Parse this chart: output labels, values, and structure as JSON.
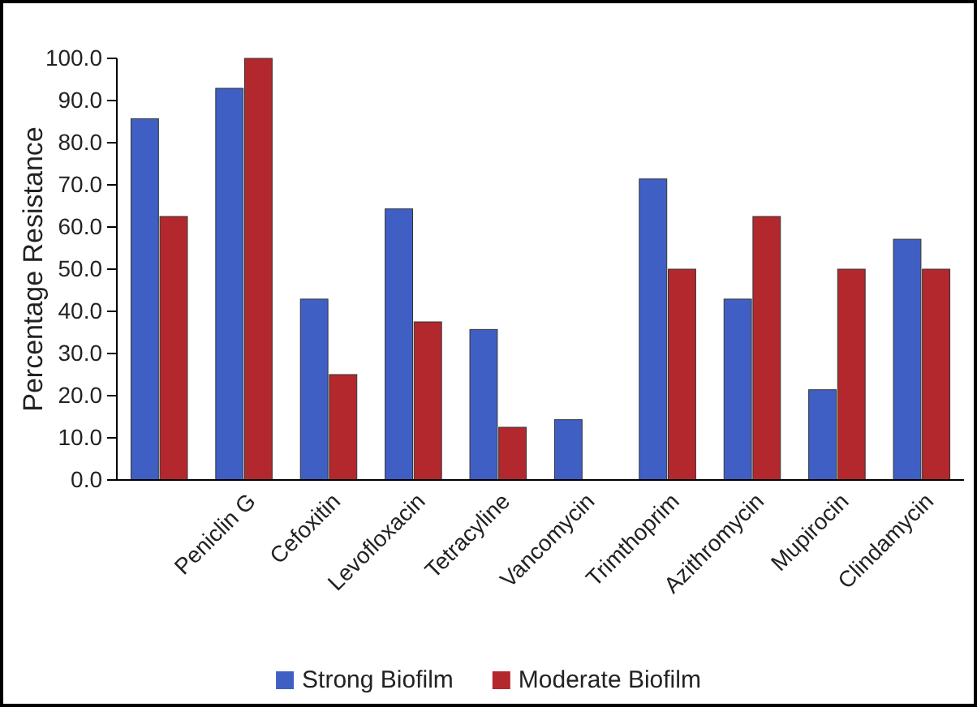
{
  "chart_data": {
    "type": "bar",
    "ylabel": "Percentage Resistance",
    "categories": [
      null,
      "Peniclin G",
      "Cefoxitin",
      "Levofloxacin",
      "Tetracyline",
      "Vancomycin",
      "Trimthoprim",
      "Azithromycin",
      "Mupirocin",
      "Clindamycin"
    ],
    "series": [
      {
        "name": "Strong Biofilm",
        "color": "#3f5fc4",
        "values": [
          85.7,
          92.9,
          42.9,
          64.3,
          35.7,
          14.3,
          71.4,
          42.9,
          21.4,
          57.1
        ]
      },
      {
        "name": "Moderate Biofilm",
        "color": "#b3282d",
        "values": [
          62.5,
          100,
          25,
          37.5,
          12.5,
          0,
          50,
          62.5,
          50,
          50
        ]
      }
    ],
    "ylim": [
      0,
      100
    ],
    "yticks": [
      {
        "value": 0,
        "label": "0.0"
      },
      {
        "value": 10,
        "label": "10.0"
      },
      {
        "value": 20,
        "label": "20.0"
      },
      {
        "value": 30,
        "label": "30.0"
      },
      {
        "value": 40,
        "label": "40.0"
      },
      {
        "value": 50,
        "label": "50.0"
      },
      {
        "value": 60,
        "label": "60.0"
      },
      {
        "value": 70,
        "label": "70.0"
      },
      {
        "value": 80,
        "label": "80.0"
      },
      {
        "value": 90,
        "label": "90.0"
      },
      {
        "value": 100,
        "label": "100.0"
      }
    ],
    "grid": false,
    "legend": "bottom"
  }
}
